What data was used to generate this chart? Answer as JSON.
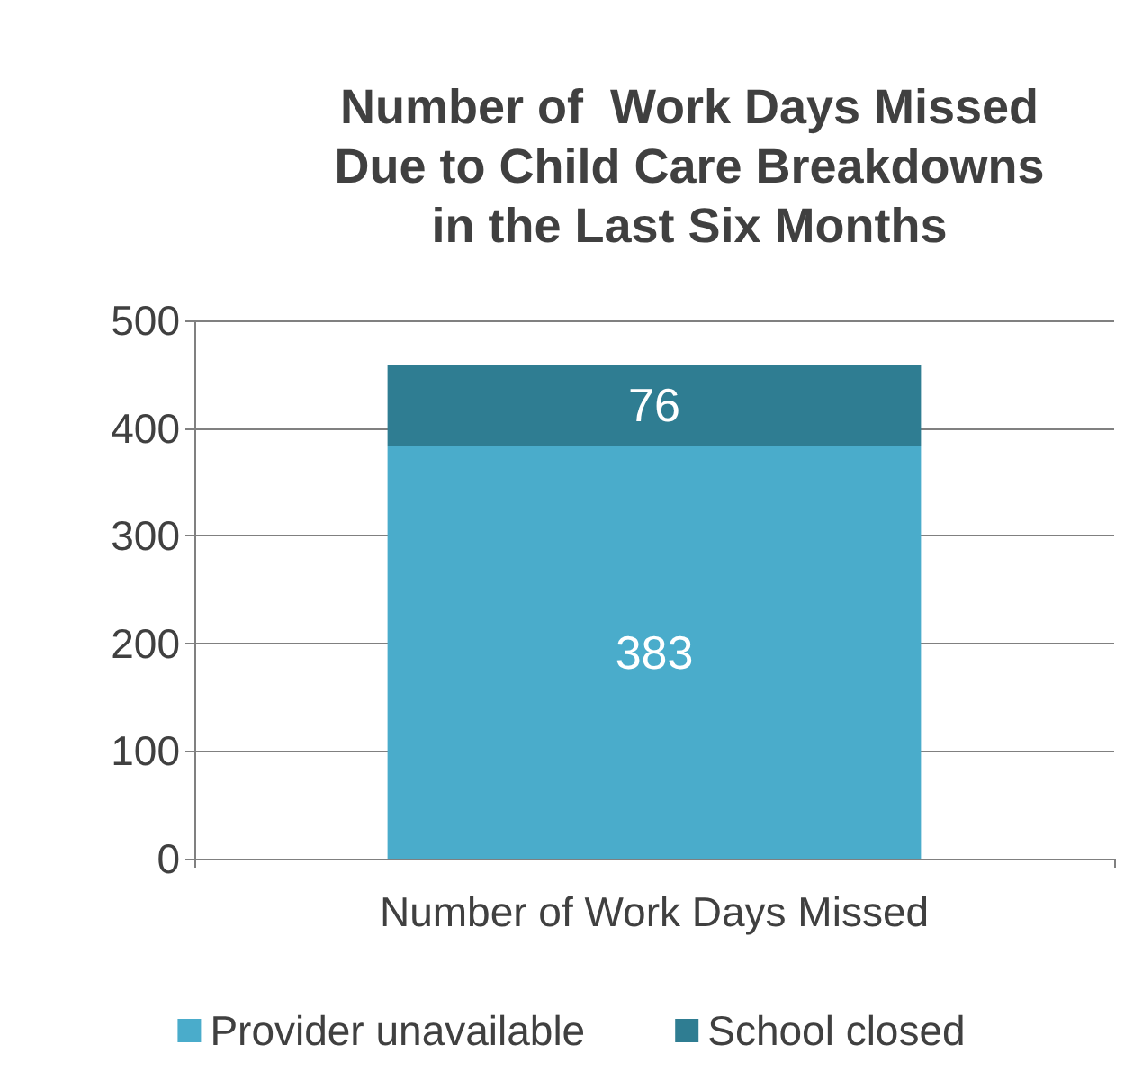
{
  "chart_data": {
    "type": "bar",
    "title": "Number of  Work Days Missed\nDue to Child Care Breakdowns\nin the Last Six Months",
    "categories": [
      "Number of Work Days Missed"
    ],
    "stacked": true,
    "series": [
      {
        "name": "Provider unavailable",
        "color": "#4aaccb",
        "values": [
          383
        ]
      },
      {
        "name": "School closed",
        "color": "#2f7d92",
        "values": [
          76
        ]
      }
    ],
    "ylim": [
      0,
      500
    ],
    "yticks": [
      0,
      100,
      200,
      300,
      400,
      500
    ],
    "grid": "y",
    "legend": "bottom",
    "data_labels": true
  }
}
